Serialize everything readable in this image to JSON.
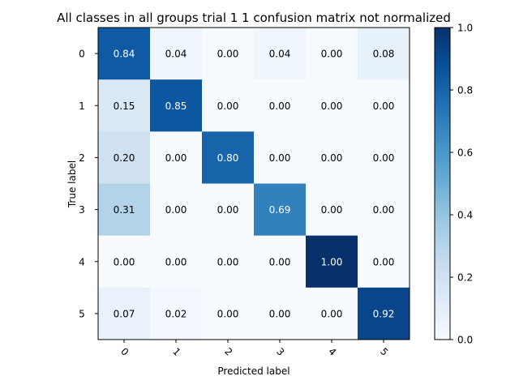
{
  "chart_data": {
    "type": "heatmap",
    "title": "All classes in all groups trial 1 1 confusion matrix not normalized",
    "xlabel": "Predicted label",
    "ylabel": "True label",
    "x_categories": [
      "0",
      "1",
      "2",
      "3",
      "4",
      "5"
    ],
    "y_categories": [
      "0",
      "1",
      "2",
      "3",
      "4",
      "5"
    ],
    "values": [
      [
        0.84,
        0.04,
        0.0,
        0.04,
        0.0,
        0.08
      ],
      [
        0.15,
        0.85,
        0.0,
        0.0,
        0.0,
        0.0
      ],
      [
        0.2,
        0.0,
        0.8,
        0.0,
        0.0,
        0.0
      ],
      [
        0.31,
        0.0,
        0.0,
        0.69,
        0.0,
        0.0
      ],
      [
        0.0,
        0.0,
        0.0,
        0.0,
        1.0,
        0.0
      ],
      [
        0.07,
        0.02,
        0.0,
        0.0,
        0.0,
        0.92
      ]
    ],
    "value_format": "0.00",
    "colormap": "Blues",
    "colorbar": {
      "range": [
        0.0,
        1.0
      ],
      "ticks": [
        0.0,
        0.2,
        0.4,
        0.6,
        0.8,
        1.0
      ],
      "tick_labels": [
        "0.0",
        "0.2",
        "0.4",
        "0.6",
        "0.8",
        "1.0"
      ]
    },
    "x_tick_rotation_deg": 45,
    "grid": false
  }
}
